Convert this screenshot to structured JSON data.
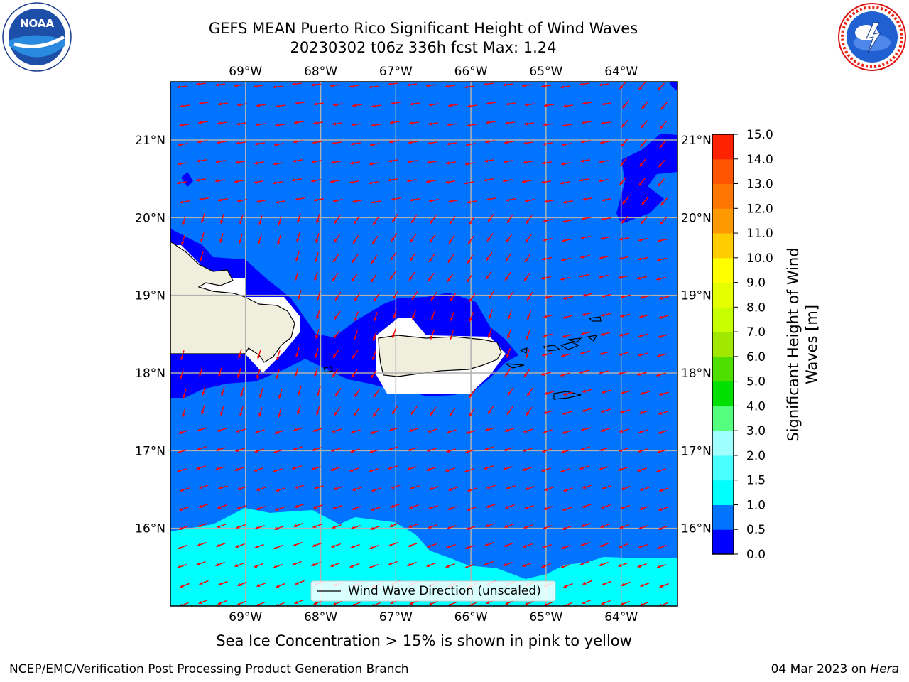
{
  "title_line1": "GEFS MEAN Puerto Rico Significant Height of Wind Waves",
  "title_line2": "20230302 t06z 336h fcst   Max: 1.24",
  "caption": "Sea Ice Concentration > 15% is shown in pink to yellow",
  "footer_left": "NCEP/EMC/Verification Post Processing Product Generation Branch",
  "footer_date": "04 Mar 2023 on ",
  "footer_machine": "Hera",
  "logos": {
    "left": "noaa-logo",
    "right": "nws-logo",
    "left_text": "NOAA"
  },
  "map": {
    "lon_range": [
      -70.0,
      -63.25
    ],
    "lat_range": [
      15.0,
      21.75
    ],
    "lon_ticks": [
      {
        "value": -69,
        "label": "69°W"
      },
      {
        "value": -68,
        "label": "68°W"
      },
      {
        "value": -67,
        "label": "67°W"
      },
      {
        "value": -66,
        "label": "66°W"
      },
      {
        "value": -65,
        "label": "65°W"
      },
      {
        "value": -64,
        "label": "64°W"
      }
    ],
    "lat_ticks": [
      {
        "value": 21,
        "label": "21°N"
      },
      {
        "value": 20,
        "label": "20°N"
      },
      {
        "value": 19,
        "label": "19°N"
      },
      {
        "value": 18,
        "label": "18°N"
      },
      {
        "value": 17,
        "label": "17°N"
      },
      {
        "value": 16,
        "label": "16°N"
      }
    ],
    "legend_label": "Wind Wave Direction (unscaled)",
    "arrow_color": "#ff0000",
    "colors": {
      "ocean": "#0073ff",
      "shallow": "#0000ff",
      "swell": "#00ffff",
      "land": "#f0eedc",
      "grid": "#b0b0b0"
    }
  },
  "colorbar": {
    "title_line1": "Significant Height of Wind",
    "title_line2": "Waves [m]",
    "levels": [
      "0.0",
      "0.5",
      "1.0",
      "1.5",
      "2.0",
      "3.0",
      "4.0",
      "5.0",
      "6.0",
      "7.0",
      "8.0",
      "9.0",
      "10.0",
      "11.0",
      "12.0",
      "13.0",
      "14.0",
      "15.0"
    ],
    "colors": [
      "#0000ff",
      "#0073ff",
      "#00ffff",
      "#4affff",
      "#a0ffff",
      "#55ff7f",
      "#00e000",
      "#50dd00",
      "#a0e800",
      "#c8ff00",
      "#e6ff00",
      "#ffff00",
      "#ffcc00",
      "#ff9900",
      "#ff7700",
      "#ff5500",
      "#ff2200"
    ]
  }
}
